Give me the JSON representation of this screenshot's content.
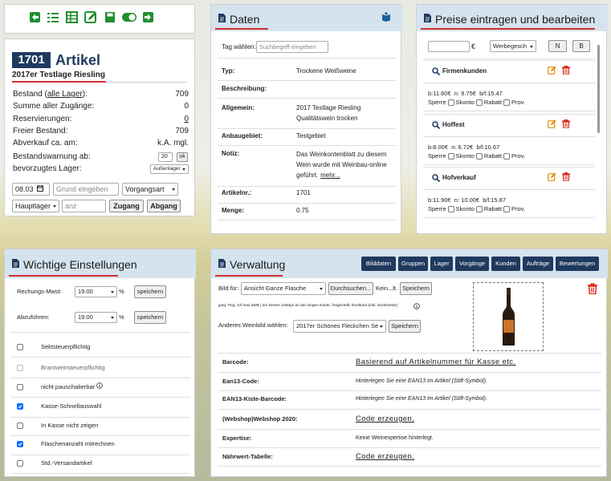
{
  "artikel": {
    "number": "1701",
    "title": "Artikel",
    "subtitle": "2017er Testlage Riesling",
    "rows": [
      {
        "label": "Bestand (",
        "link": "alle Lager",
        "label_end": "):",
        "value": "709"
      },
      {
        "label": "Summe aller Zugänge:",
        "value": "0"
      },
      {
        "label": "Reservierungen:",
        "value_link": "0"
      },
      {
        "label": "Freier Bestand:",
        "value": "709"
      },
      {
        "label": "Abverkauf ca. am:",
        "value": "k.A. mgl."
      },
      {
        "label": "Bestandswarnung ab:",
        "input": "20",
        "button": "ok"
      },
      {
        "label": "bevorzugtes Lager:",
        "select": "Außenlager"
      }
    ],
    "date": "08.03",
    "reason_placeholder": "Grund eingeben",
    "type_select": "Vorgangsart",
    "lager_select": "Hauptlager",
    "amount_placeholder": "anz",
    "buttons": [
      "Zugang",
      "Abgang"
    ]
  },
  "daten": {
    "title": "Daten",
    "tag_label": "Tag wählen:",
    "tag_placeholder": "Suchbegriff eingeben",
    "rows": [
      {
        "label": "Typ:",
        "value": "Trockene Weißweine"
      },
      {
        "label": "Beschreibung:"
      },
      {
        "label": "Allgemein:",
        "lines": [
          "2017 Testlage Riesling",
          "Qualitätswein trocken"
        ]
      },
      {
        "label": "Anbaugebiet:",
        "value": "Testgebiet"
      },
      {
        "label": "Notiz:",
        "value": "Das Weinkontenblatt zu diesem Wein wurde mit Weinbau-online geführt.",
        "link": "mehr..."
      },
      {
        "label": "Artikelnr.:",
        "value": "1701"
      },
      {
        "label": "Menge:",
        "value": "0.75"
      }
    ]
  },
  "preise": {
    "title": "Preise eintragen und bearbeiten",
    "currency": "€",
    "select": "Werbegesch",
    "buttons": [
      "N",
      "B"
    ],
    "flags": [
      "Sperre",
      "Skonto",
      "Rabatt",
      "Prov."
    ],
    "entries": [
      {
        "name": "Firmenkunden",
        "prices": "b:11.60€  n: 9.75€  b/l:15.47"
      },
      {
        "name": "Hoffest",
        "prices": "b:8.00€  n: 6.72€  b/l:10.67"
      },
      {
        "name": "Hofverkauf",
        "prices": "b:11.90€  n: 10.00€  b/l:15.87"
      }
    ]
  },
  "einstellungen": {
    "title": "Wichtige Einstellungen",
    "percent": "%",
    "save": "speichern",
    "taxes": [
      {
        "label": "Rechungs-Mwst:",
        "value": "19.00"
      },
      {
        "label": "Abzuführen:",
        "value": "19.00"
      }
    ],
    "options": [
      {
        "label": "Sektsteuerpflichtig",
        "checked": false
      },
      {
        "label": "Brantweinsteuerpflichtig",
        "checked": false,
        "disabled": true
      },
      {
        "label": "nicht pauschalierbar",
        "checked": false,
        "info": true
      },
      {
        "label": "Kasse-Schnellauswahl",
        "checked": true
      },
      {
        "label": "In Kasse nicht zeigen",
        "checked": false
      },
      {
        "label": "Flaschenanzahl mitrechnen",
        "checked": true
      },
      {
        "label": "Std.-Versandartikel",
        "checked": false
      }
    ]
  },
  "verwaltung": {
    "title": "Verwaltung",
    "tabs": [
      "Bilddaten",
      "Gruppen",
      "Lager",
      "Vorgänge",
      "Kunden",
      "Aufträge",
      "Bewertungen"
    ],
    "image_label": "Bild für:",
    "image_select": "Ansicht Ganze Flasche",
    "browse": "Durchsuchen...",
    "file": "Kein...lt.",
    "save": "Speichern",
    "note": "jpeg, Png, Gif max 5MB | am besten 1920px an der langen Kante, freigestellt, hochkant (inkl. Sortimente).",
    "other_label": "Anderes Weinbild wählen:",
    "other_select": "2017er Schönes Fleckchen Se",
    "rows": [
      {
        "label": "Barcode:",
        "link": "Basierend auf Artikelnummer für Kasse etc."
      },
      {
        "label": "Ean13-Code:",
        "note": "Hinterlegen Sie eine EAN13 im Artikel (Stift-Symbol)."
      },
      {
        "label": "EAN13-Kiste-Barcode:",
        "note": "Hinterlegen Sie eine EAN13 im Artikel (Stift-Symbol)."
      },
      {
        "label": "(Webshop)Webshop 2020:",
        "link": "Code erzeugen."
      },
      {
        "label": "Expertise:",
        "value": "Keine Weinexpertise hinterlegt."
      },
      {
        "label": "Nährwert-Tabelle:",
        "link": "Code erzeugen."
      }
    ]
  }
}
